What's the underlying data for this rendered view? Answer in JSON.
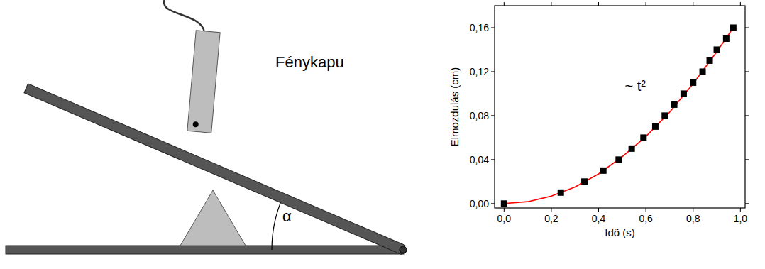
{
  "chart_data": {
    "type": "scatter",
    "x_label": "Idõ (s)",
    "y_label": "Elmozdulás (cm)",
    "annotations": [
      "~ t²"
    ],
    "series": [
      {
        "type": "scatter",
        "color": "#000000",
        "marker": "square",
        "x": [
          0,
          0.24,
          0.34,
          0.42,
          0.485,
          0.54,
          0.59,
          0.64,
          0.68,
          0.72,
          0.76,
          0.8,
          0.84,
          0.87,
          0.9,
          0.94,
          0.97
        ],
        "values": [
          0,
          0.01,
          0.02,
          0.03,
          0.04,
          0.05,
          0.06,
          0.07,
          0.08,
          0.09,
          0.1,
          0.11,
          0.12,
          0.13,
          0.14,
          0.15,
          0.16
        ]
      },
      {
        "type": "line",
        "color": "#ff0000",
        "line_style": "solid",
        "x": [
          0,
          0.1,
          0.2,
          0.3,
          0.4,
          0.5,
          0.6,
          0.7,
          0.8,
          0.9,
          0.97
        ],
        "values": [
          0,
          0.0017,
          0.0068,
          0.015,
          0.027,
          0.0425,
          0.061,
          0.083,
          0.109,
          0.138,
          0.16
        ]
      }
    ],
    "xlim": [
      -0.04,
      1.02
    ],
    "ylim": [
      -0.004,
      0.18
    ],
    "xticks": [
      {
        "value": 0,
        "label": "0,0"
      },
      {
        "value": 0.2,
        "label": "0,2"
      },
      {
        "value": 0.4,
        "label": "0,4"
      },
      {
        "value": 0.6,
        "label": "0,6"
      },
      {
        "value": 0.8,
        "label": "0,8"
      },
      {
        "value": 1,
        "label": "1,0"
      }
    ],
    "yticks": [
      {
        "value": 0,
        "label": "0,00"
      },
      {
        "value": 0.04,
        "label": "0,04"
      },
      {
        "value": 0.08,
        "label": "0,08"
      },
      {
        "value": 0.12,
        "label": "0,12"
      },
      {
        "value": 0.16,
        "label": "0,16"
      }
    ],
    "grid": false
  },
  "diagram": {
    "label": "Fénykapu",
    "angle_label": "α"
  }
}
